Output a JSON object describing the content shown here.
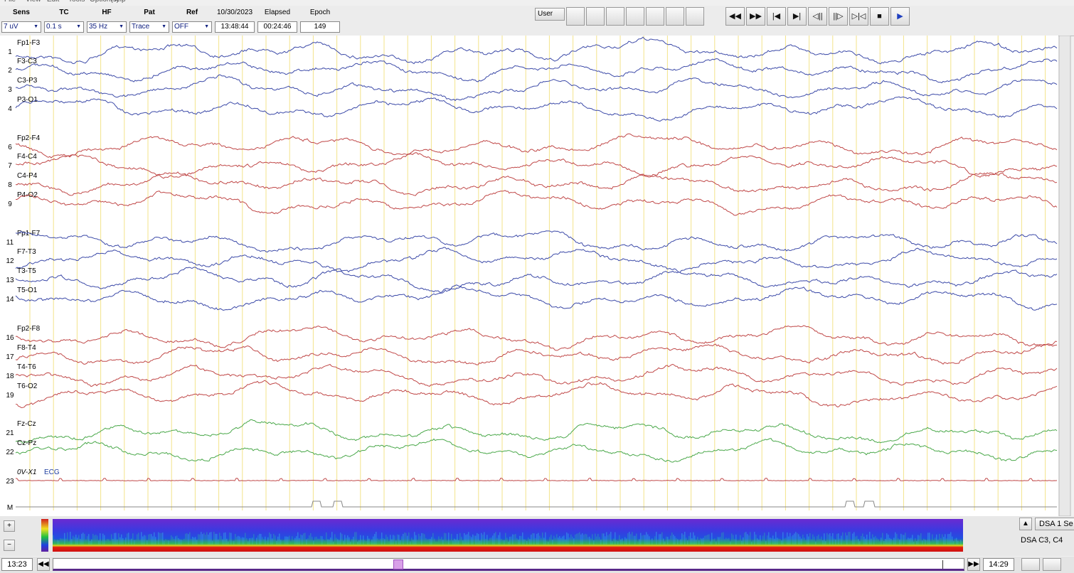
{
  "menu": [
    "File",
    "View",
    "Edit",
    "Tools",
    "Option(s)",
    "Help"
  ],
  "toolbar": {
    "fields": [
      {
        "label": "Sens",
        "value": "7 uV"
      },
      {
        "label": "TC",
        "value": "0.1 s"
      },
      {
        "label": "HF",
        "value": "35 Hz"
      },
      {
        "label": "Pat",
        "value": "Trace"
      },
      {
        "label": "Ref",
        "value": "OFF"
      }
    ],
    "date": "10/30/2023",
    "time": "13:48:44",
    "elapsed_label": "Elapsed",
    "elapsed": "00:24:46",
    "epoch_label": "Epoch",
    "epoch": "149",
    "user": "User"
  },
  "channels": [
    {
      "number": "1",
      "label": "Fp1-F3",
      "color": "#3c4aa8"
    },
    {
      "number": "2",
      "label": "F3-C3",
      "color": "#3c4aa8"
    },
    {
      "number": "3",
      "label": "C3-P3",
      "color": "#3c4aa8"
    },
    {
      "number": "4",
      "label": "P3-O1",
      "color": "#3c4aa8"
    },
    {
      "number": "6",
      "label": "Fp2-F4",
      "color": "#c04848"
    },
    {
      "number": "7",
      "label": "F4-C4",
      "color": "#c04848"
    },
    {
      "number": "8",
      "label": "C4-P4",
      "color": "#c04848"
    },
    {
      "number": "9",
      "label": "P4-O2",
      "color": "#c04848"
    },
    {
      "number": "11",
      "label": "Fp1-F7",
      "color": "#3c4aa8"
    },
    {
      "number": "12",
      "label": "F7-T3",
      "color": "#3c4aa8"
    },
    {
      "number": "13",
      "label": "T3-T5",
      "color": "#3c4aa8"
    },
    {
      "number": "14",
      "label": "T5-O1",
      "color": "#3c4aa8"
    },
    {
      "number": "16",
      "label": "Fp2-F8",
      "color": "#c04848"
    },
    {
      "number": "17",
      "label": "F8-T4",
      "color": "#c04848"
    },
    {
      "number": "18",
      "label": "T4-T6",
      "color": "#c04848"
    },
    {
      "number": "19",
      "label": "T6-O2",
      "color": "#c04848"
    },
    {
      "number": "21",
      "label": "Fz-Cz",
      "color": "#4aa84a"
    },
    {
      "number": "22",
      "label": "Cz-Pz",
      "color": "#4aa84a"
    },
    {
      "number": "23",
      "label": "0V-X1",
      "extra": "ECG",
      "color": "#c04848"
    },
    {
      "number": "M",
      "label": "",
      "color": "#888888"
    }
  ],
  "bottom": {
    "dsa_title": "DSA 1 Se",
    "dsa_channels": "DSA C3, C4",
    "start_time": "13:23",
    "end_time": "14:29"
  }
}
